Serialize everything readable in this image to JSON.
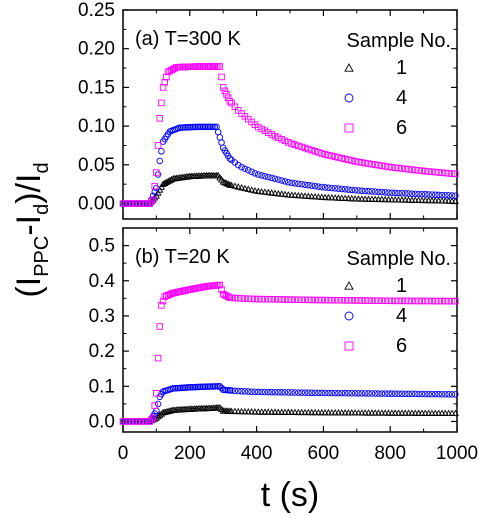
{
  "chart_data": [
    {
      "type": "scatter",
      "panel_label": "(a) T=300 K",
      "legend_title": "Sample No.",
      "xlim": [
        0,
        1000
      ],
      "ylim": [
        -0.02,
        0.25
      ],
      "y_ticks": [
        "0.00",
        "0.05",
        "0.10",
        "0.15",
        "0.20",
        "0.25"
      ],
      "y_tick_values": [
        0,
        0.05,
        0.1,
        0.15,
        0.2,
        0.25
      ],
      "series": [
        {
          "name": "1",
          "marker": "triangle",
          "color": "#000000",
          "points": [
            [
              0,
              0.0
            ],
            [
              80,
              0.0
            ],
            [
              100,
              0.01
            ],
            [
              120,
              0.025
            ],
            [
              150,
              0.032
            ],
            [
              200,
              0.035
            ],
            [
              250,
              0.036
            ],
            [
              285,
              0.036
            ],
            [
              300,
              0.028
            ],
            [
              320,
              0.024
            ],
            [
              400,
              0.016
            ],
            [
              500,
              0.011
            ],
            [
              600,
              0.008
            ],
            [
              700,
              0.006
            ],
            [
              800,
              0.005
            ],
            [
              900,
              0.004
            ],
            [
              1000,
              0.003
            ]
          ]
        },
        {
          "name": "4",
          "marker": "circle",
          "color": "#0000ff",
          "points": [
            [
              0,
              0.0
            ],
            [
              80,
              0.0
            ],
            [
              100,
              0.02
            ],
            [
              110,
              0.055
            ],
            [
              120,
              0.08
            ],
            [
              140,
              0.093
            ],
            [
              170,
              0.098
            ],
            [
              220,
              0.099
            ],
            [
              280,
              0.099
            ],
            [
              300,
              0.072
            ],
            [
              320,
              0.058
            ],
            [
              350,
              0.048
            ],
            [
              400,
              0.038
            ],
            [
              500,
              0.027
            ],
            [
              600,
              0.021
            ],
            [
              700,
              0.017
            ],
            [
              800,
              0.014
            ],
            [
              900,
              0.012
            ],
            [
              1000,
              0.01
            ]
          ]
        },
        {
          "name": "6",
          "marker": "square",
          "color": "#ff00ff",
          "points": [
            [
              0,
              0.0
            ],
            [
              80,
              0.0
            ],
            [
              90,
              0.005
            ],
            [
              100,
              0.04
            ],
            [
              110,
              0.11
            ],
            [
              120,
              0.15
            ],
            [
              135,
              0.17
            ],
            [
              160,
              0.176
            ],
            [
              220,
              0.177
            ],
            [
              290,
              0.177
            ],
            [
              300,
              0.15
            ],
            [
              320,
              0.132
            ],
            [
              350,
              0.118
            ],
            [
              400,
              0.1
            ],
            [
              450,
              0.088
            ],
            [
              500,
              0.078
            ],
            [
              600,
              0.064
            ],
            [
              700,
              0.054
            ],
            [
              800,
              0.047
            ],
            [
              900,
              0.042
            ],
            [
              1000,
              0.038
            ]
          ]
        }
      ]
    },
    {
      "type": "scatter",
      "panel_label": "(b) T=20 K",
      "legend_title": "Sample No.",
      "xlim": [
        0,
        1000
      ],
      "ylim": [
        -0.03,
        0.55
      ],
      "y_ticks": [
        "0.0",
        "0.1",
        "0.2",
        "0.3",
        "0.4",
        "0.5"
      ],
      "y_tick_values": [
        0,
        0.1,
        0.2,
        0.3,
        0.4,
        0.5
      ],
      "x_ticks": [
        "0",
        "200",
        "400",
        "600",
        "800",
        "1000"
      ],
      "x_tick_values": [
        0,
        200,
        400,
        600,
        800,
        1000
      ],
      "xlabel": "t (s)",
      "series": [
        {
          "name": "1",
          "marker": "triangle",
          "color": "#000000",
          "points": [
            [
              0,
              0.0
            ],
            [
              80,
              0.0
            ],
            [
              100,
              0.01
            ],
            [
              120,
              0.025
            ],
            [
              150,
              0.032
            ],
            [
              200,
              0.035
            ],
            [
              250,
              0.037
            ],
            [
              290,
              0.039
            ],
            [
              300,
              0.03
            ],
            [
              320,
              0.029
            ],
            [
              400,
              0.027
            ],
            [
              600,
              0.025
            ],
            [
              800,
              0.024
            ],
            [
              1000,
              0.023
            ]
          ]
        },
        {
          "name": "4",
          "marker": "circle",
          "color": "#0000ff",
          "points": [
            [
              0,
              0.0
            ],
            [
              80,
              0.0
            ],
            [
              100,
              0.03
            ],
            [
              110,
              0.07
            ],
            [
              120,
              0.085
            ],
            [
              150,
              0.094
            ],
            [
              200,
              0.097
            ],
            [
              250,
              0.099
            ],
            [
              290,
              0.1
            ],
            [
              300,
              0.09
            ],
            [
              350,
              0.086
            ],
            [
              400,
              0.084
            ],
            [
              600,
              0.081
            ],
            [
              800,
              0.079
            ],
            [
              1000,
              0.077
            ]
          ]
        },
        {
          "name": "6",
          "marker": "square",
          "color": "#ff00ff",
          "points": [
            [
              0,
              0.0
            ],
            [
              80,
              0.0
            ],
            [
              90,
              0.01
            ],
            [
              100,
              0.08
            ],
            [
              105,
              0.18
            ],
            [
              110,
              0.27
            ],
            [
              115,
              0.33
            ],
            [
              125,
              0.355
            ],
            [
              150,
              0.365
            ],
            [
              200,
              0.375
            ],
            [
              250,
              0.384
            ],
            [
              290,
              0.388
            ],
            [
              300,
              0.362
            ],
            [
              320,
              0.352
            ],
            [
              350,
              0.35
            ],
            [
              400,
              0.348
            ],
            [
              600,
              0.345
            ],
            [
              800,
              0.343
            ],
            [
              1000,
              0.342
            ]
          ]
        }
      ]
    }
  ],
  "ylabel_parts": {
    "open": "(I",
    "sub1": "PPC",
    "mid": "-I",
    "sub2": "d",
    "close": ")/I",
    "sub3": "d"
  }
}
